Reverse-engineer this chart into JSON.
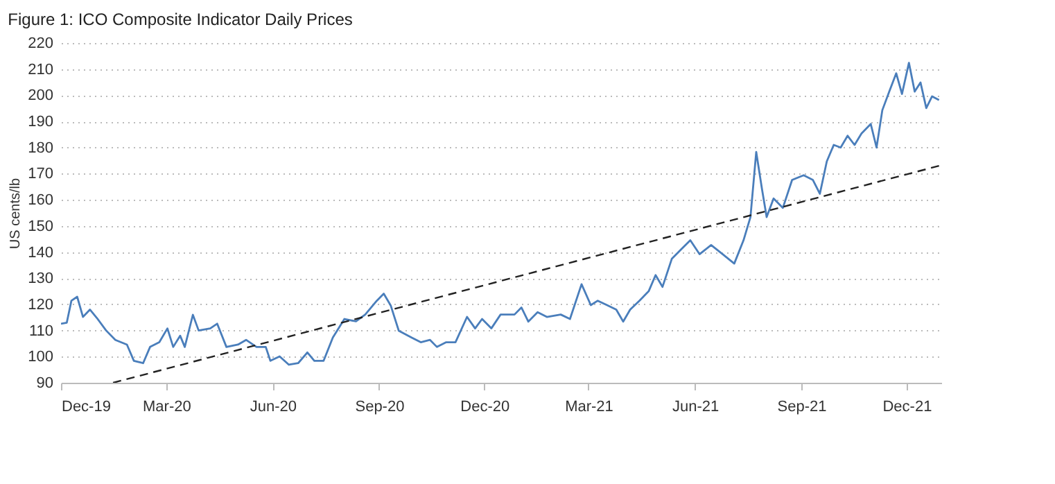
{
  "chart_data": {
    "type": "line",
    "title": "Figure 1: ICO Composite Indicator Daily Prices",
    "ylabel": "US cents/lb",
    "x": [
      "2019-12-01",
      "2019-12-06",
      "2019-12-10",
      "2019-12-15",
      "2019-12-20",
      "2019-12-26",
      "2020-01-01",
      "2020-01-09",
      "2020-01-17",
      "2020-01-27",
      "2020-02-02",
      "2020-02-10",
      "2020-02-16",
      "2020-02-24",
      "2020-03-02",
      "2020-03-07",
      "2020-03-13",
      "2020-03-17",
      "2020-03-24",
      "2020-03-29",
      "2020-04-08",
      "2020-04-14",
      "2020-04-22",
      "2020-05-02",
      "2020-05-09",
      "2020-05-18",
      "2020-05-26",
      "2020-05-30",
      "2020-06-07",
      "2020-06-15",
      "2020-06-23",
      "2020-07-01",
      "2020-07-07",
      "2020-07-15",
      "2020-07-23",
      "2020-08-02",
      "2020-08-12",
      "2020-08-20",
      "2020-08-30",
      "2020-09-05",
      "2020-09-11",
      "2020-09-18",
      "2020-09-29",
      "2020-10-07",
      "2020-10-15",
      "2020-10-21",
      "2020-10-29",
      "2020-11-06",
      "2020-11-16",
      "2020-11-23",
      "2020-11-29",
      "2020-12-07",
      "2020-12-15",
      "2020-12-27",
      "2021-01-02",
      "2021-01-08",
      "2021-01-16",
      "2021-01-24",
      "2021-02-05",
      "2021-02-13",
      "2021-02-23",
      "2021-03-03",
      "2021-03-09",
      "2021-03-17",
      "2021-03-25",
      "2021-03-31",
      "2021-04-06",
      "2021-04-14",
      "2021-04-22",
      "2021-04-28",
      "2021-05-04",
      "2021-05-12",
      "2021-05-20",
      "2021-05-28",
      "2021-06-05",
      "2021-06-15",
      "2021-06-25",
      "2021-07-05",
      "2021-07-13",
      "2021-07-19",
      "2021-07-24",
      "2021-07-29",
      "2021-08-02",
      "2021-08-08",
      "2021-08-16",
      "2021-08-24",
      "2021-09-03",
      "2021-09-11",
      "2021-09-17",
      "2021-09-23",
      "2021-09-29",
      "2021-10-05",
      "2021-10-11",
      "2021-10-17",
      "2021-10-23",
      "2021-10-31",
      "2021-11-05",
      "2021-11-10",
      "2021-11-16",
      "2021-11-22",
      "2021-11-27",
      "2021-12-03",
      "2021-12-08",
      "2021-12-13",
      "2021-12-18",
      "2021-12-23",
      "2021-12-29"
    ],
    "series": [
      {
        "color": "#4a7ebb",
        "line_style": "solid",
        "values": [
          112.6,
          113,
          121.4,
          122.9,
          115.2,
          118,
          114.8,
          110,
          106.4,
          104.6,
          98.4,
          97.5,
          103.7,
          105.5,
          110.8,
          103.7,
          108,
          103.7,
          116,
          110,
          110.8,
          112.6,
          103.7,
          104.6,
          106.4,
          103.7,
          103.7,
          98.4,
          100.1,
          96.9,
          97.5,
          101.6,
          98.4,
          98.4,
          107.3,
          114.4,
          113.5,
          116.1,
          121.4,
          124.1,
          119.6,
          109.9,
          107.3,
          105.5,
          106.4,
          103.7,
          105.5,
          105.5,
          115.2,
          110.8,
          114.4,
          110.8,
          116.1,
          116.1,
          118.8,
          113.4,
          117,
          115.2,
          116.1,
          114.4,
          127.7,
          119.7,
          121.4,
          119.7,
          118,
          113.4,
          118,
          121.4,
          125,
          131.2,
          126.7,
          137.4,
          141,
          144.5,
          139.2,
          142.7,
          139.2,
          135.6,
          144.5,
          153.4,
          178.3,
          164,
          153.4,
          160.5,
          156.9,
          167.6,
          169.4,
          167.6,
          162.3,
          174.7,
          181,
          180,
          184.5,
          181,
          185.4,
          189,
          180,
          194.3,
          201.4,
          208.4,
          200.5,
          212.4,
          201.4,
          204.9,
          195.1,
          199.6,
          198.2
        ]
      },
      {
        "type": "line",
        "color": "#222222",
        "line_style": "dashed",
        "x": [
          "2020-01-15",
          "2021-12-29"
        ],
        "values": [
          90,
          173
        ]
      }
    ],
    "xlim": [
      "2019-12-01",
      "2021-12-31"
    ],
    "xticks": [
      {
        "value": "2019-12-01",
        "label": "Dec-19"
      },
      {
        "value": "2020-03-01",
        "label": "Mar-20"
      },
      {
        "value": "2020-06-01",
        "label": "Jun-20"
      },
      {
        "value": "2020-09-01",
        "label": "Sep-20"
      },
      {
        "value": "2020-12-01",
        "label": "Dec-20"
      },
      {
        "value": "2021-03-01",
        "label": "Mar-21"
      },
      {
        "value": "2021-06-01",
        "label": "Jun-21"
      },
      {
        "value": "2021-09-01",
        "label": "Sep-21"
      },
      {
        "value": "2021-12-01",
        "label": "Dec-21"
      }
    ],
    "ylim": [
      90,
      220
    ],
    "yticks": [
      90,
      100,
      110,
      120,
      130,
      140,
      150,
      160,
      170,
      180,
      190,
      200,
      210,
      220
    ],
    "grid": "y"
  }
}
